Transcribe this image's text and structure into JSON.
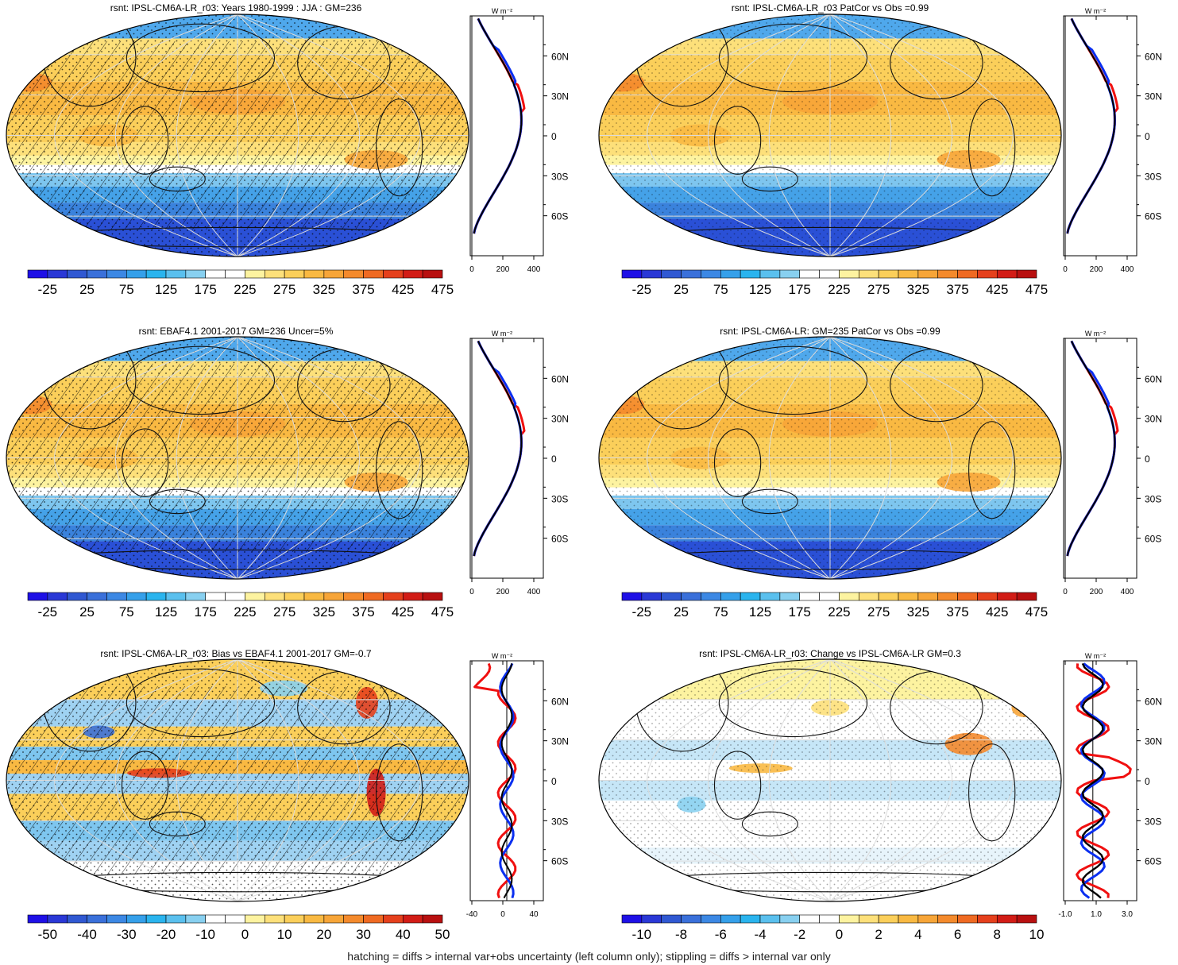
{
  "colors": {
    "abs_scale": [
      "#1e10e6",
      "#2a38d6",
      "#3058d2",
      "#3a70da",
      "#3c88e4",
      "#35a0ea",
      "#2ab4ee",
      "#5ac0ee",
      "#88d0f0",
      "#ffffff",
      "#ffffff",
      "#fdf3a0",
      "#fde07a",
      "#fbcf5a",
      "#f9b942",
      "#f7a538",
      "#f48a2c",
      "#ef6a22",
      "#e5401c",
      "#d21c16",
      "#b81010"
    ],
    "line_model": "#0a2ff0",
    "line_obs": "#f01010",
    "line_mean": "#000000"
  },
  "panels": [
    {
      "id": "tl",
      "title": "rsnt: IPSL-CM6A-LR_r03: Years 1980-1999 : JJA : GM=236",
      "scale": "abs",
      "colorbar_labels": [
        "-25",
        "25",
        "75",
        "125",
        "175",
        "225",
        "275",
        "325",
        "375",
        "425",
        "475"
      ],
      "profile_unit": "W m⁻²",
      "profile_xticks": [
        "0",
        "200",
        "400"
      ],
      "lat_labels": [
        "60N",
        "30N",
        "0",
        "30S",
        "60S"
      ],
      "hatching": true,
      "profile_type": "abs"
    },
    {
      "id": "tr",
      "title": "rsnt: IPSL-CM6A-LR_r03 PatCor vs Obs =0.99",
      "scale": "abs",
      "colorbar_labels": [
        "-25",
        "25",
        "75",
        "125",
        "175",
        "225",
        "275",
        "325",
        "375",
        "425",
        "475"
      ],
      "profile_unit": "W m⁻²",
      "profile_xticks": [
        "0",
        "200",
        "400"
      ],
      "lat_labels": [
        "60N",
        "30N",
        "0",
        "30S",
        "60S"
      ],
      "hatching": false,
      "profile_type": "abs"
    },
    {
      "id": "ml",
      "title": "rsnt: EBAF4.1 2001-2017 GM=236 Uncer=5%",
      "scale": "abs",
      "colorbar_labels": [
        "-25",
        "25",
        "75",
        "125",
        "175",
        "225",
        "275",
        "325",
        "375",
        "425",
        "475"
      ],
      "profile_unit": "W m⁻²",
      "profile_xticks": [
        "0",
        "200",
        "400"
      ],
      "lat_labels": [
        "60N",
        "30N",
        "0",
        "30S",
        "60S"
      ],
      "hatching": true,
      "profile_type": "abs"
    },
    {
      "id": "mr",
      "title": "rsnt: IPSL-CM6A-LR: GM=235 PatCor vs Obs =0.99",
      "scale": "abs",
      "colorbar_labels": [
        "-25",
        "25",
        "75",
        "125",
        "175",
        "225",
        "275",
        "325",
        "375",
        "425",
        "475"
      ],
      "profile_unit": "W m⁻²",
      "profile_xticks": [
        "0",
        "200",
        "400"
      ],
      "lat_labels": [
        "60N",
        "30N",
        "0",
        "30S",
        "60S"
      ],
      "hatching": false,
      "profile_type": "abs"
    },
    {
      "id": "bl",
      "title": "rsnt: IPSL-CM6A-LR_r03: Bias vs EBAF4.1 2001-2017 GM=-0.7",
      "scale": "bias",
      "colorbar_labels": [
        "-50",
        "-40",
        "-30",
        "-20",
        "-10",
        "0",
        "10",
        "20",
        "30",
        "40",
        "50"
      ],
      "profile_unit": "W m⁻²",
      "profile_xticks": [
        "-40",
        "0",
        "40"
      ],
      "lat_labels": [
        "60N",
        "30N",
        "0",
        "30S",
        "60S"
      ],
      "hatching": true,
      "profile_type": "bias"
    },
    {
      "id": "br",
      "title": "rsnt: IPSL-CM6A-LR_r03: Change vs IPSL-CM6A-LR GM=0.3",
      "scale": "change",
      "colorbar_labels": [
        "-10",
        "-8",
        "-6",
        "-4",
        "-2",
        "0",
        "2",
        "4",
        "6",
        "8",
        "10"
      ],
      "profile_unit": "W m⁻²",
      "profile_xticks": [
        "-1.0",
        "1.0",
        "3.0"
      ],
      "lat_labels": [
        "60N",
        "30N",
        "0",
        "30S",
        "60S"
      ],
      "hatching": false,
      "profile_type": "change"
    }
  ],
  "footer": "hatching = diffs > internal var+obs uncertainty (left column only); stippling = diffs > internal var only"
}
